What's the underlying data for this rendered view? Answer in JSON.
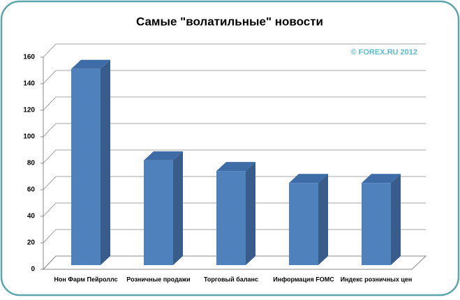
{
  "chart_data": {
    "type": "bar3d",
    "title": "Самые \"волатильные\" новости",
    "watermark": "© FOREX.RU 2012",
    "categories": [
      "Нон Фарм Пейроллс",
      "Розничные продажи",
      "Торговый баланс",
      "Информация FOMC",
      "Индекс розничных цен"
    ],
    "values": [
      148,
      79,
      71,
      62,
      62
    ],
    "color": "#4f81bd",
    "ylim": [
      0,
      160
    ],
    "yticks": [
      0,
      20,
      40,
      60,
      80,
      100,
      120,
      140,
      160
    ],
    "grid": true
  }
}
